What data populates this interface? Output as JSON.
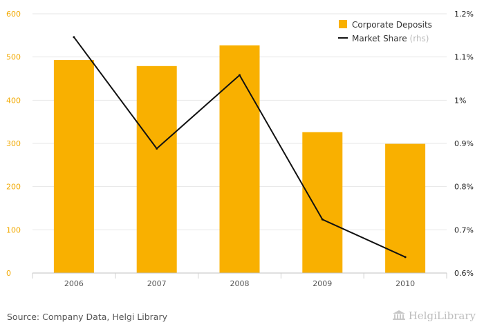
{
  "chart_data": {
    "type": "bar",
    "categories": [
      "2006",
      "2007",
      "2008",
      "2009",
      "2010"
    ],
    "series": [
      {
        "name": "Corporate Deposits",
        "type": "bar",
        "axis": "left",
        "values": [
          493,
          479,
          527,
          326,
          299
        ]
      },
      {
        "name": "Market Share",
        "name_suffix": "(rhs)",
        "type": "line",
        "axis": "right",
        "values": [
          1.146,
          0.888,
          1.058,
          0.724,
          0.637
        ]
      }
    ],
    "y_left": {
      "min": 0,
      "max": 600,
      "step": 100,
      "ticks": [
        "0",
        "100",
        "200",
        "300",
        "400",
        "500",
        "600"
      ]
    },
    "y_right": {
      "min": 0.6,
      "max": 1.2,
      "ticks": [
        "0.6%",
        "0.7%",
        "0.8%",
        "0.9%",
        "1%",
        "1.1%",
        "1.2%"
      ]
    },
    "grid": true,
    "legend_position": "top-right"
  },
  "colors": {
    "bar": "#f9b000",
    "line": "#111111",
    "grid": "#e6e6e6",
    "left_axis_text": "#f2a900"
  },
  "footer": {
    "source": "Source: Company Data, Helgi Library",
    "brand": "HelgiLibrary",
    "brand_icon": "bank-building-icon"
  }
}
